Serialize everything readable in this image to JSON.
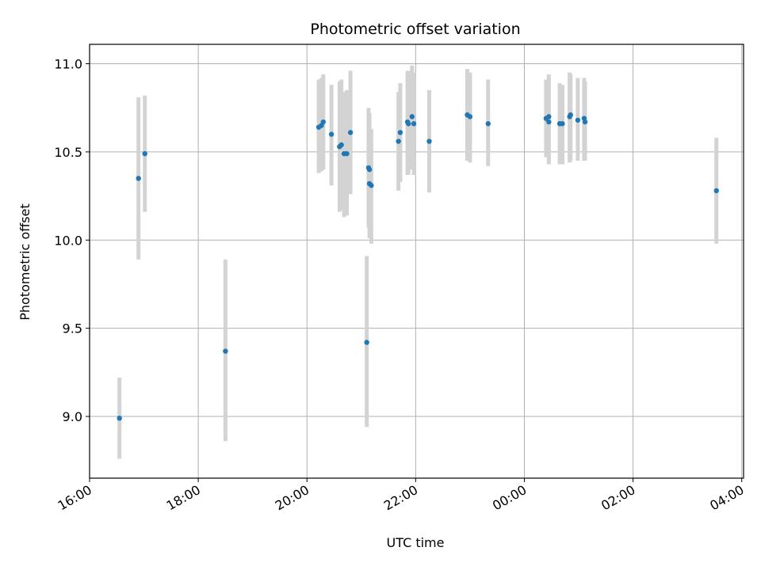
{
  "chart_data": {
    "type": "scatter",
    "title": "Photometric offset variation",
    "xlabel": "UTC time",
    "ylabel": "Photometric offset",
    "x_axis_type": "time",
    "xlim": [
      "2000-01-01T16:00",
      "2000-01-02T04:02"
    ],
    "ylim": [
      8.65,
      11.11
    ],
    "grid": true,
    "x_ticks": [
      {
        "value": "2000-01-01T16:00",
        "label": "16:00"
      },
      {
        "value": "2000-01-01T18:00",
        "label": "18:00"
      },
      {
        "value": "2000-01-01T20:00",
        "label": "20:00"
      },
      {
        "value": "2000-01-01T22:00",
        "label": "22:00"
      },
      {
        "value": "2000-01-02T00:00",
        "label": "00:00"
      },
      {
        "value": "2000-01-02T02:00",
        "label": "02:00"
      },
      {
        "value": "2000-01-02T04:00",
        "label": "04:00"
      }
    ],
    "y_ticks": [
      {
        "value": 9.0,
        "label": "9.0"
      },
      {
        "value": 9.5,
        "label": "9.5"
      },
      {
        "value": 10.0,
        "label": "10.0"
      },
      {
        "value": 10.5,
        "label": "10.5"
      },
      {
        "value": 11.0,
        "label": "11.0"
      }
    ],
    "marker_color": "#1f77b4",
    "errorbar_color": "#d3d3d3",
    "points": [
      {
        "x": "2000-01-01T16:33",
        "y": 8.99,
        "yerr_low": 8.76,
        "yerr_high": 9.22
      },
      {
        "x": "2000-01-01T16:54",
        "y": 10.35,
        "yerr_low": 9.89,
        "yerr_high": 10.81
      },
      {
        "x": "2000-01-01T17:01",
        "y": 10.49,
        "yerr_low": 10.16,
        "yerr_high": 10.82
      },
      {
        "x": "2000-01-01T18:30",
        "y": 9.37,
        "yerr_low": 8.86,
        "yerr_high": 9.89
      },
      {
        "x": "2000-01-01T20:13",
        "y": 10.64,
        "yerr_low": 10.38,
        "yerr_high": 10.91
      },
      {
        "x": "2000-01-01T20:16",
        "y": 10.65,
        "yerr_low": 10.39,
        "yerr_high": 10.92
      },
      {
        "x": "2000-01-01T20:18",
        "y": 10.67,
        "yerr_low": 10.4,
        "yerr_high": 10.94
      },
      {
        "x": "2000-01-01T20:27",
        "y": 10.6,
        "yerr_low": 10.31,
        "yerr_high": 10.88
      },
      {
        "x": "2000-01-01T20:36",
        "y": 10.53,
        "yerr_low": 10.16,
        "yerr_high": 10.9
      },
      {
        "x": "2000-01-01T20:38",
        "y": 10.54,
        "yerr_low": 10.17,
        "yerr_high": 10.91
      },
      {
        "x": "2000-01-01T20:41",
        "y": 10.49,
        "yerr_low": 10.13,
        "yerr_high": 10.84
      },
      {
        "x": "2000-01-01T20:44",
        "y": 10.49,
        "yerr_low": 10.14,
        "yerr_high": 10.85
      },
      {
        "x": "2000-01-01T20:48",
        "y": 10.61,
        "yerr_low": 10.26,
        "yerr_high": 10.96
      },
      {
        "x": "2000-01-01T21:06",
        "y": 9.42,
        "yerr_low": 8.94,
        "yerr_high": 9.91
      },
      {
        "x": "2000-01-01T21:08",
        "y": 10.41,
        "yerr_low": 10.07,
        "yerr_high": 10.75
      },
      {
        "x": "2000-01-01T21:09",
        "y": 10.4,
        "yerr_low": 10.09,
        "yerr_high": 10.72
      },
      {
        "x": "2000-01-01T21:09",
        "y": 10.32,
        "yerr_low": 10.01,
        "yerr_high": 10.63
      },
      {
        "x": "2000-01-01T21:11",
        "y": 10.31,
        "yerr_low": 9.98,
        "yerr_high": 10.63
      },
      {
        "x": "2000-01-01T21:41",
        "y": 10.56,
        "yerr_low": 10.28,
        "yerr_high": 10.84
      },
      {
        "x": "2000-01-01T21:43",
        "y": 10.61,
        "yerr_low": 10.33,
        "yerr_high": 10.89
      },
      {
        "x": "2000-01-01T21:51",
        "y": 10.67,
        "yerr_low": 10.37,
        "yerr_high": 10.96
      },
      {
        "x": "2000-01-01T21:52",
        "y": 10.66,
        "yerr_low": 10.37,
        "yerr_high": 10.96
      },
      {
        "x": "2000-01-01T21:56",
        "y": 10.7,
        "yerr_low": 10.4,
        "yerr_high": 10.99
      },
      {
        "x": "2000-01-01T21:58",
        "y": 10.66,
        "yerr_low": 10.37,
        "yerr_high": 10.95
      },
      {
        "x": "2000-01-01T22:15",
        "y": 10.56,
        "yerr_low": 10.27,
        "yerr_high": 10.85
      },
      {
        "x": "2000-01-01T22:57",
        "y": 10.71,
        "yerr_low": 10.45,
        "yerr_high": 10.97
      },
      {
        "x": "2000-01-01T23:00",
        "y": 10.7,
        "yerr_low": 10.44,
        "yerr_high": 10.95
      },
      {
        "x": "2000-01-01T23:20",
        "y": 10.66,
        "yerr_low": 10.42,
        "yerr_high": 10.91
      },
      {
        "x": "2000-01-02T00:24",
        "y": 10.69,
        "yerr_low": 10.47,
        "yerr_high": 10.91
      },
      {
        "x": "2000-01-02T00:27",
        "y": 10.7,
        "yerr_low": 10.46,
        "yerr_high": 10.94
      },
      {
        "x": "2000-01-02T00:27",
        "y": 10.67,
        "yerr_low": 10.43,
        "yerr_high": 10.92
      },
      {
        "x": "2000-01-02T00:39",
        "y": 10.66,
        "yerr_low": 10.43,
        "yerr_high": 10.89
      },
      {
        "x": "2000-01-02T00:42",
        "y": 10.66,
        "yerr_low": 10.43,
        "yerr_high": 10.88
      },
      {
        "x": "2000-01-02T00:50",
        "y": 10.7,
        "yerr_low": 10.44,
        "yerr_high": 10.95
      },
      {
        "x": "2000-01-02T00:51",
        "y": 10.71,
        "yerr_low": 10.45,
        "yerr_high": 10.94
      },
      {
        "x": "2000-01-02T00:59",
        "y": 10.68,
        "yerr_low": 10.45,
        "yerr_high": 10.92
      },
      {
        "x": "2000-01-02T01:06",
        "y": 10.69,
        "yerr_low": 10.45,
        "yerr_high": 10.92
      },
      {
        "x": "2000-01-02T01:07",
        "y": 10.67,
        "yerr_low": 10.45,
        "yerr_high": 10.9
      },
      {
        "x": "2000-01-02T03:32",
        "y": 10.28,
        "yerr_low": 9.98,
        "yerr_high": 10.58
      }
    ]
  }
}
